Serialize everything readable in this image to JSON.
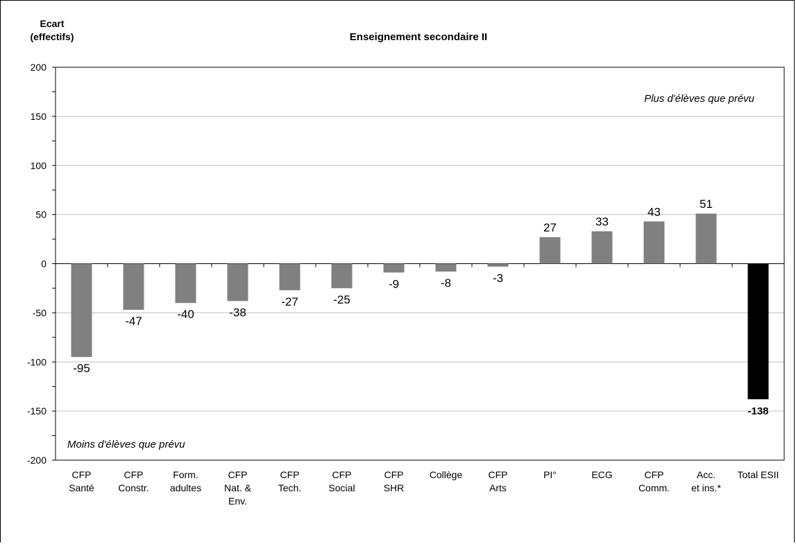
{
  "chart_data": {
    "type": "bar",
    "title": "Enseignement secondaire II",
    "ylabel": [
      "Ecart",
      "(effectifs)"
    ],
    "xlabel": "",
    "ylim": [
      -200,
      200
    ],
    "yticks": [
      200,
      150,
      100,
      50,
      0,
      -50,
      -100,
      -150,
      -200
    ],
    "grid": true,
    "annotations": {
      "top_right": "Plus d'élèves que prévu",
      "bottom_left": "Moins d'élèves que prévu"
    },
    "categories": [
      [
        "CFP",
        "Santé"
      ],
      [
        "CFP",
        "Constr."
      ],
      [
        "Form.",
        "adultes"
      ],
      [
        "CFP",
        "Nat. &",
        "Env."
      ],
      [
        "CFP",
        "Tech."
      ],
      [
        "CFP",
        "Social"
      ],
      [
        "CFP",
        "SHR"
      ],
      [
        "Collège"
      ],
      [
        "CFP",
        "Arts"
      ],
      [
        "PI°"
      ],
      [
        "ECG"
      ],
      [
        "CFP",
        "Comm."
      ],
      [
        "Acc.",
        "et ins.*"
      ],
      [
        "Total ESII"
      ]
    ],
    "values": [
      -95,
      -47,
      -40,
      -38,
      -27,
      -25,
      -9,
      -8,
      -3,
      27,
      33,
      43,
      51,
      -138
    ],
    "labels": [
      "-95",
      "-47",
      "-40",
      "-38",
      "-27",
      "-25",
      "-9",
      "-8",
      "-3",
      "27",
      "33",
      "43",
      "51",
      "-138"
    ],
    "colors": {
      "bar": "#808080",
      "total_bar": "#000000",
      "grid": "#c0c0c0",
      "axis": "#000000"
    }
  }
}
